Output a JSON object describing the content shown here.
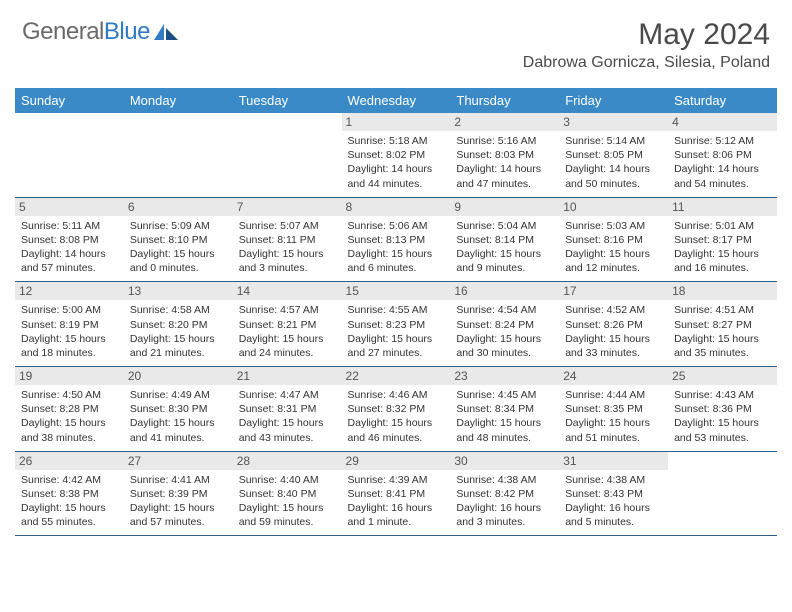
{
  "brand": {
    "name_part1": "General",
    "name_part2": "Blue"
  },
  "title": "May 2024",
  "location": "Dabrowa Gornicza, Silesia, Poland",
  "colors": {
    "header_bg": "#3a8ac7",
    "header_text": "#ffffff",
    "daynum_bg": "#e9e9e9",
    "row_border": "#2f5e8a",
    "text": "#333333",
    "brand_gray": "#6a6a6a",
    "brand_blue": "#2f7bc4"
  },
  "typography": {
    "title_fontsize": 30,
    "location_fontsize": 16,
    "header_fontsize": 13,
    "daynum_fontsize": 12,
    "cell_fontsize": 10.5
  },
  "weekdays": [
    "Sunday",
    "Monday",
    "Tuesday",
    "Wednesday",
    "Thursday",
    "Friday",
    "Saturday"
  ],
  "weeks": [
    [
      {
        "day": "",
        "sunrise": "",
        "sunset": "",
        "daylight": ""
      },
      {
        "day": "",
        "sunrise": "",
        "sunset": "",
        "daylight": ""
      },
      {
        "day": "",
        "sunrise": "",
        "sunset": "",
        "daylight": ""
      },
      {
        "day": "1",
        "sunrise": "Sunrise: 5:18 AM",
        "sunset": "Sunset: 8:02 PM",
        "daylight": "Daylight: 14 hours and 44 minutes."
      },
      {
        "day": "2",
        "sunrise": "Sunrise: 5:16 AM",
        "sunset": "Sunset: 8:03 PM",
        "daylight": "Daylight: 14 hours and 47 minutes."
      },
      {
        "day": "3",
        "sunrise": "Sunrise: 5:14 AM",
        "sunset": "Sunset: 8:05 PM",
        "daylight": "Daylight: 14 hours and 50 minutes."
      },
      {
        "day": "4",
        "sunrise": "Sunrise: 5:12 AM",
        "sunset": "Sunset: 8:06 PM",
        "daylight": "Daylight: 14 hours and 54 minutes."
      }
    ],
    [
      {
        "day": "5",
        "sunrise": "Sunrise: 5:11 AM",
        "sunset": "Sunset: 8:08 PM",
        "daylight": "Daylight: 14 hours and 57 minutes."
      },
      {
        "day": "6",
        "sunrise": "Sunrise: 5:09 AM",
        "sunset": "Sunset: 8:10 PM",
        "daylight": "Daylight: 15 hours and 0 minutes."
      },
      {
        "day": "7",
        "sunrise": "Sunrise: 5:07 AM",
        "sunset": "Sunset: 8:11 PM",
        "daylight": "Daylight: 15 hours and 3 minutes."
      },
      {
        "day": "8",
        "sunrise": "Sunrise: 5:06 AM",
        "sunset": "Sunset: 8:13 PM",
        "daylight": "Daylight: 15 hours and 6 minutes."
      },
      {
        "day": "9",
        "sunrise": "Sunrise: 5:04 AM",
        "sunset": "Sunset: 8:14 PM",
        "daylight": "Daylight: 15 hours and 9 minutes."
      },
      {
        "day": "10",
        "sunrise": "Sunrise: 5:03 AM",
        "sunset": "Sunset: 8:16 PM",
        "daylight": "Daylight: 15 hours and 12 minutes."
      },
      {
        "day": "11",
        "sunrise": "Sunrise: 5:01 AM",
        "sunset": "Sunset: 8:17 PM",
        "daylight": "Daylight: 15 hours and 16 minutes."
      }
    ],
    [
      {
        "day": "12",
        "sunrise": "Sunrise: 5:00 AM",
        "sunset": "Sunset: 8:19 PM",
        "daylight": "Daylight: 15 hours and 18 minutes."
      },
      {
        "day": "13",
        "sunrise": "Sunrise: 4:58 AM",
        "sunset": "Sunset: 8:20 PM",
        "daylight": "Daylight: 15 hours and 21 minutes."
      },
      {
        "day": "14",
        "sunrise": "Sunrise: 4:57 AM",
        "sunset": "Sunset: 8:21 PM",
        "daylight": "Daylight: 15 hours and 24 minutes."
      },
      {
        "day": "15",
        "sunrise": "Sunrise: 4:55 AM",
        "sunset": "Sunset: 8:23 PM",
        "daylight": "Daylight: 15 hours and 27 minutes."
      },
      {
        "day": "16",
        "sunrise": "Sunrise: 4:54 AM",
        "sunset": "Sunset: 8:24 PM",
        "daylight": "Daylight: 15 hours and 30 minutes."
      },
      {
        "day": "17",
        "sunrise": "Sunrise: 4:52 AM",
        "sunset": "Sunset: 8:26 PM",
        "daylight": "Daylight: 15 hours and 33 minutes."
      },
      {
        "day": "18",
        "sunrise": "Sunrise: 4:51 AM",
        "sunset": "Sunset: 8:27 PM",
        "daylight": "Daylight: 15 hours and 35 minutes."
      }
    ],
    [
      {
        "day": "19",
        "sunrise": "Sunrise: 4:50 AM",
        "sunset": "Sunset: 8:28 PM",
        "daylight": "Daylight: 15 hours and 38 minutes."
      },
      {
        "day": "20",
        "sunrise": "Sunrise: 4:49 AM",
        "sunset": "Sunset: 8:30 PM",
        "daylight": "Daylight: 15 hours and 41 minutes."
      },
      {
        "day": "21",
        "sunrise": "Sunrise: 4:47 AM",
        "sunset": "Sunset: 8:31 PM",
        "daylight": "Daylight: 15 hours and 43 minutes."
      },
      {
        "day": "22",
        "sunrise": "Sunrise: 4:46 AM",
        "sunset": "Sunset: 8:32 PM",
        "daylight": "Daylight: 15 hours and 46 minutes."
      },
      {
        "day": "23",
        "sunrise": "Sunrise: 4:45 AM",
        "sunset": "Sunset: 8:34 PM",
        "daylight": "Daylight: 15 hours and 48 minutes."
      },
      {
        "day": "24",
        "sunrise": "Sunrise: 4:44 AM",
        "sunset": "Sunset: 8:35 PM",
        "daylight": "Daylight: 15 hours and 51 minutes."
      },
      {
        "day": "25",
        "sunrise": "Sunrise: 4:43 AM",
        "sunset": "Sunset: 8:36 PM",
        "daylight": "Daylight: 15 hours and 53 minutes."
      }
    ],
    [
      {
        "day": "26",
        "sunrise": "Sunrise: 4:42 AM",
        "sunset": "Sunset: 8:38 PM",
        "daylight": "Daylight: 15 hours and 55 minutes."
      },
      {
        "day": "27",
        "sunrise": "Sunrise: 4:41 AM",
        "sunset": "Sunset: 8:39 PM",
        "daylight": "Daylight: 15 hours and 57 minutes."
      },
      {
        "day": "28",
        "sunrise": "Sunrise: 4:40 AM",
        "sunset": "Sunset: 8:40 PM",
        "daylight": "Daylight: 15 hours and 59 minutes."
      },
      {
        "day": "29",
        "sunrise": "Sunrise: 4:39 AM",
        "sunset": "Sunset: 8:41 PM",
        "daylight": "Daylight: 16 hours and 1 minute."
      },
      {
        "day": "30",
        "sunrise": "Sunrise: 4:38 AM",
        "sunset": "Sunset: 8:42 PM",
        "daylight": "Daylight: 16 hours and 3 minutes."
      },
      {
        "day": "31",
        "sunrise": "Sunrise: 4:38 AM",
        "sunset": "Sunset: 8:43 PM",
        "daylight": "Daylight: 16 hours and 5 minutes."
      },
      {
        "day": "",
        "sunrise": "",
        "sunset": "",
        "daylight": ""
      }
    ]
  ]
}
